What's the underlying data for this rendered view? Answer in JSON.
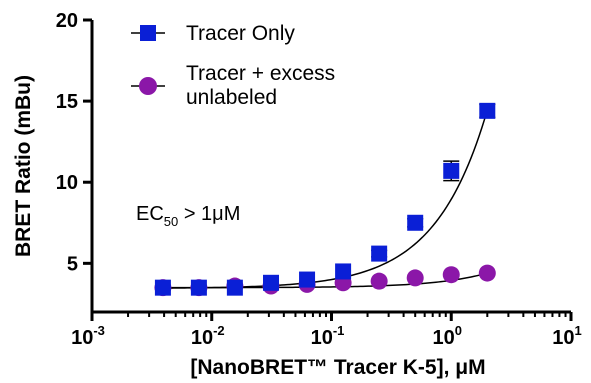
{
  "chart_data": {
    "type": "scatter",
    "x_scale": "log",
    "xlim": [
      0.001,
      10
    ],
    "ylim": [
      2,
      20
    ],
    "xlabel": "[NanoBRET™ Tracer K-5], μM",
    "ylabel": "BRET Ratio (mBu)",
    "x_ticks": [
      0.001,
      0.01,
      0.1,
      1,
      10
    ],
    "x_tick_labels": [
      {
        "base": "10",
        "exp": "-3"
      },
      {
        "base": "10",
        "exp": "-2"
      },
      {
        "base": "10",
        "exp": "-1"
      },
      {
        "base": "10",
        "exp": "0"
      },
      {
        "base": "10",
        "exp": "1"
      }
    ],
    "y_ticks": [
      5,
      10,
      15,
      20
    ],
    "y_tick_labels": [
      "5",
      "10",
      "15",
      "20"
    ],
    "annotation": {
      "prefix": "EC",
      "subscript": "50",
      "suffix": " > 1μM"
    },
    "series": [
      {
        "name": "Tracer Only",
        "marker": "square",
        "color": "#0a1fd6",
        "x": [
          0.00391,
          0.00781,
          0.0156,
          0.03125,
          0.0625,
          0.125,
          0.25,
          0.5,
          1.0,
          2.0
        ],
        "y": [
          3.5,
          3.5,
          3.5,
          3.8,
          4.0,
          4.5,
          5.6,
          7.5,
          10.7,
          14.4
        ],
        "error": [
          0.15,
          0.1,
          0.1,
          0.1,
          0.15,
          0.15,
          0.2,
          0.25,
          0.6,
          0.4
        ]
      },
      {
        "name": "Tracer + excess unlabeled",
        "marker": "circle",
        "color": "#8b17a8",
        "x": [
          0.00391,
          0.00781,
          0.0156,
          0.03125,
          0.0625,
          0.125,
          0.25,
          0.5,
          1.0,
          2.0
        ],
        "y": [
          3.5,
          3.5,
          3.6,
          3.6,
          3.7,
          3.8,
          3.9,
          4.1,
          4.3,
          4.4
        ],
        "error": [
          0.05,
          0.05,
          0.05,
          0.05,
          0.05,
          0.05,
          0.05,
          0.05,
          0.05,
          0.05
        ]
      }
    ],
    "legend": {
      "position": "top-left",
      "line1": "Tracer Only",
      "line2a": "Tracer + excess",
      "line2b": "unlabeled"
    },
    "grid": false
  }
}
